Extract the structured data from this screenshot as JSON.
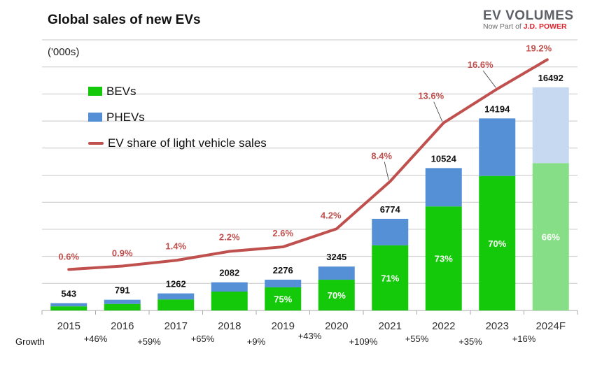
{
  "chart_data": {
    "type": "bar",
    "title": "Global sales of new EVs",
    "unit_label": "('000s)",
    "categories": [
      "2015",
      "2016",
      "2017",
      "2018",
      "2019",
      "2020",
      "2021",
      "2022",
      "2023",
      "2024F"
    ],
    "totals": [
      543,
      791,
      1262,
      2082,
      2276,
      3245,
      6774,
      10524,
      14194,
      16492
    ],
    "bev_share_pct": [
      55,
      60,
      64,
      67,
      75,
      70,
      71,
      73,
      70,
      66
    ],
    "bev_share_labels": [
      "",
      "",
      "",
      "",
      "75%",
      "70%",
      "71%",
      "73%",
      "70%",
      "66%"
    ],
    "ev_share_of_light_vehicle_sales_pct": [
      0.6,
      0.9,
      1.4,
      2.2,
      2.6,
      4.2,
      8.4,
      13.6,
      16.6,
      19.2
    ],
    "ev_share_labels": [
      "0.6%",
      "0.9%",
      "1.4%",
      "2.2%",
      "2.6%",
      "4.2%",
      "8.4%",
      "13.6%",
      "16.6%",
      "19.2%"
    ],
    "growth_label": "Growth",
    "growth": [
      "+46%",
      "+59%",
      "+65%",
      "+9%",
      "+43%",
      "+109%",
      "+55%",
      "+35%",
      "+16%"
    ],
    "ylim": [
      0,
      20000
    ],
    "ytick_step": 2000,
    "grid": true,
    "legend": {
      "position": "top-left",
      "entries": [
        "BEVs",
        "PHEVs",
        "EV share of light vehicle sales"
      ]
    },
    "series_colors": {
      "BEVs": "#13c90a",
      "PHEVs": "#5590d6",
      "EV share of light vehicle sales": "#c0504d",
      "BEVs_forecast": "#86df86",
      "PHEVs_forecast": "#c6d9f0"
    }
  },
  "logo": {
    "name": "EV VOLUMES",
    "sub": "Now Part of",
    "brand": "J.D. POWER"
  }
}
